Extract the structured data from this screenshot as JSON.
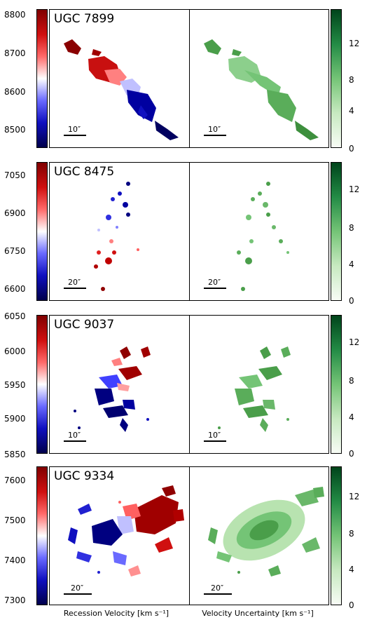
{
  "x_labels": {
    "left": "Recession Velocity [km s⁻¹]",
    "right": "Velocity Uncertainty [km s⁻¹]"
  },
  "uncertainty_ticks": [
    "0",
    "4",
    "8",
    "12"
  ],
  "uncertainty_range": [
    0,
    14
  ],
  "colors": {
    "red": "#a00000",
    "blue": "#000080",
    "green": "#4a9e4a"
  },
  "galaxies": [
    {
      "name": "UGC 7899",
      "scale": "10″",
      "vel_ticks": [
        "8500",
        "8600",
        "8700",
        "8800"
      ],
      "vel_range": [
        8450,
        8820
      ]
    },
    {
      "name": "UGC 8475",
      "scale": "20″",
      "vel_ticks": [
        "6600",
        "6750",
        "6900",
        "7050"
      ],
      "vel_range": [
        6560,
        7090
      ]
    },
    {
      "name": "UGC 9037",
      "scale": "10″",
      "vel_ticks": [
        "5850",
        "5900",
        "5950",
        "6000",
        "6050"
      ],
      "vel_range": [
        5850,
        6050
      ]
    },
    {
      "name": "UGC 9334",
      "scale": "20″",
      "vel_ticks": [
        "7300",
        "7400",
        "7500",
        "7600"
      ],
      "vel_range": [
        7280,
        7640
      ]
    }
  ]
}
